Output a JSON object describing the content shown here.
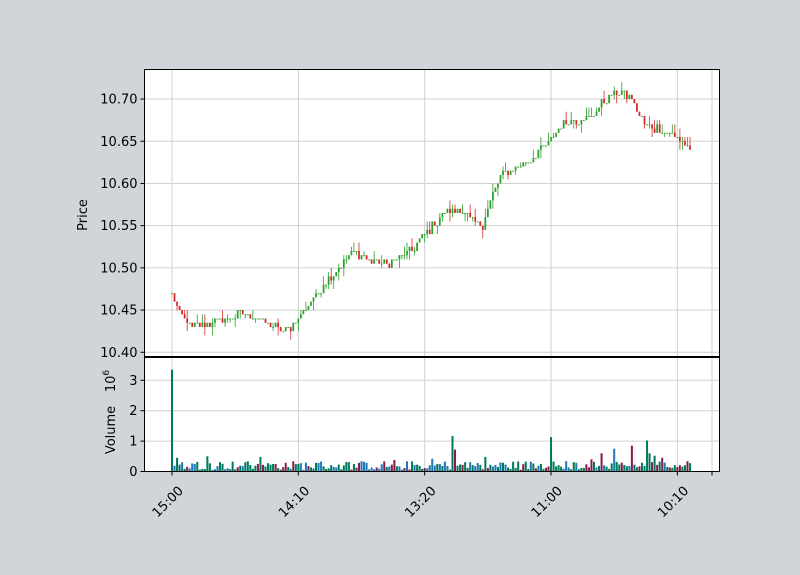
{
  "chart_data": {
    "type": "candlestick",
    "x_tick_labels": [
      "15:00",
      "14:10",
      "13:20",
      "11:00",
      "10:10",
      ""
    ],
    "price_panel": {
      "ylabel": "Price",
      "ylim": [
        10.395,
        10.735
      ],
      "yticks": [
        "10.40",
        "10.45",
        "10.50",
        "10.55",
        "10.60",
        "10.65",
        "10.70"
      ],
      "ytick_values": [
        10.4,
        10.45,
        10.5,
        10.55,
        10.6,
        10.65,
        10.7
      ],
      "grid": true
    },
    "volume_panel": {
      "ylabel": "Volume",
      "exponent_label": "10",
      "exponent_power": "6",
      "ylim": [
        0,
        3.75
      ],
      "yticks": [
        "0",
        "1",
        "2",
        "3"
      ],
      "ytick_values": [
        0,
        1,
        2,
        3
      ],
      "grid": true
    },
    "colors": {
      "up": "#2ca02c",
      "down": "#d62728",
      "volume_up": "#007a5e",
      "volume_down": "#8b1a4a",
      "volume_other": "#1f77b4",
      "grid": "#d0d0d0",
      "background": "#ffffff",
      "figure_background": "#d1d5da"
    },
    "price_anchors": [
      [
        0,
        10.47
      ],
      [
        3,
        10.445
      ],
      [
        8,
        10.43
      ],
      [
        15,
        10.435
      ],
      [
        22,
        10.44
      ],
      [
        28,
        10.445
      ],
      [
        34,
        10.44
      ],
      [
        40,
        10.43
      ],
      [
        45,
        10.425
      ],
      [
        50,
        10.44
      ],
      [
        55,
        10.46
      ],
      [
        60,
        10.48
      ],
      [
        66,
        10.5
      ],
      [
        72,
        10.52
      ],
      [
        78,
        10.51
      ],
      [
        84,
        10.505
      ],
      [
        90,
        10.51
      ],
      [
        96,
        10.525
      ],
      [
        102,
        10.545
      ],
      [
        108,
        10.565
      ],
      [
        114,
        10.57
      ],
      [
        119,
        10.555
      ],
      [
        123,
        10.55
      ],
      [
        126,
        10.58
      ],
      [
        130,
        10.61
      ],
      [
        136,
        10.62
      ],
      [
        142,
        10.63
      ],
      [
        148,
        10.645
      ],
      [
        154,
        10.67
      ],
      [
        160,
        10.675
      ],
      [
        166,
        10.68
      ],
      [
        172,
        10.7
      ],
      [
        177,
        10.71
      ],
      [
        182,
        10.7
      ],
      [
        187,
        10.67
      ],
      [
        192,
        10.665
      ],
      [
        197,
        10.66
      ],
      [
        202,
        10.65
      ],
      [
        205,
        10.64
      ]
    ],
    "volume_millions": {
      "first_bar": 3.35,
      "spikes": [
        [
          111,
          1.17
        ],
        [
          112,
          0.72
        ],
        [
          150,
          1.13
        ],
        [
          166,
          0.4
        ],
        [
          170,
          0.6
        ],
        [
          175,
          0.75
        ],
        [
          182,
          0.85
        ],
        [
          188,
          1.02
        ],
        [
          189,
          0.6
        ],
        [
          191,
          0.52
        ],
        [
          194,
          0.45
        ],
        [
          103,
          0.42
        ],
        [
          124,
          0.48
        ],
        [
          88,
          0.38
        ],
        [
          35,
          0.48
        ],
        [
          14,
          0.5
        ],
        [
          2,
          0.45
        ]
      ],
      "baseline_range": [
        0.05,
        0.35
      ]
    },
    "bar_count": 206
  }
}
